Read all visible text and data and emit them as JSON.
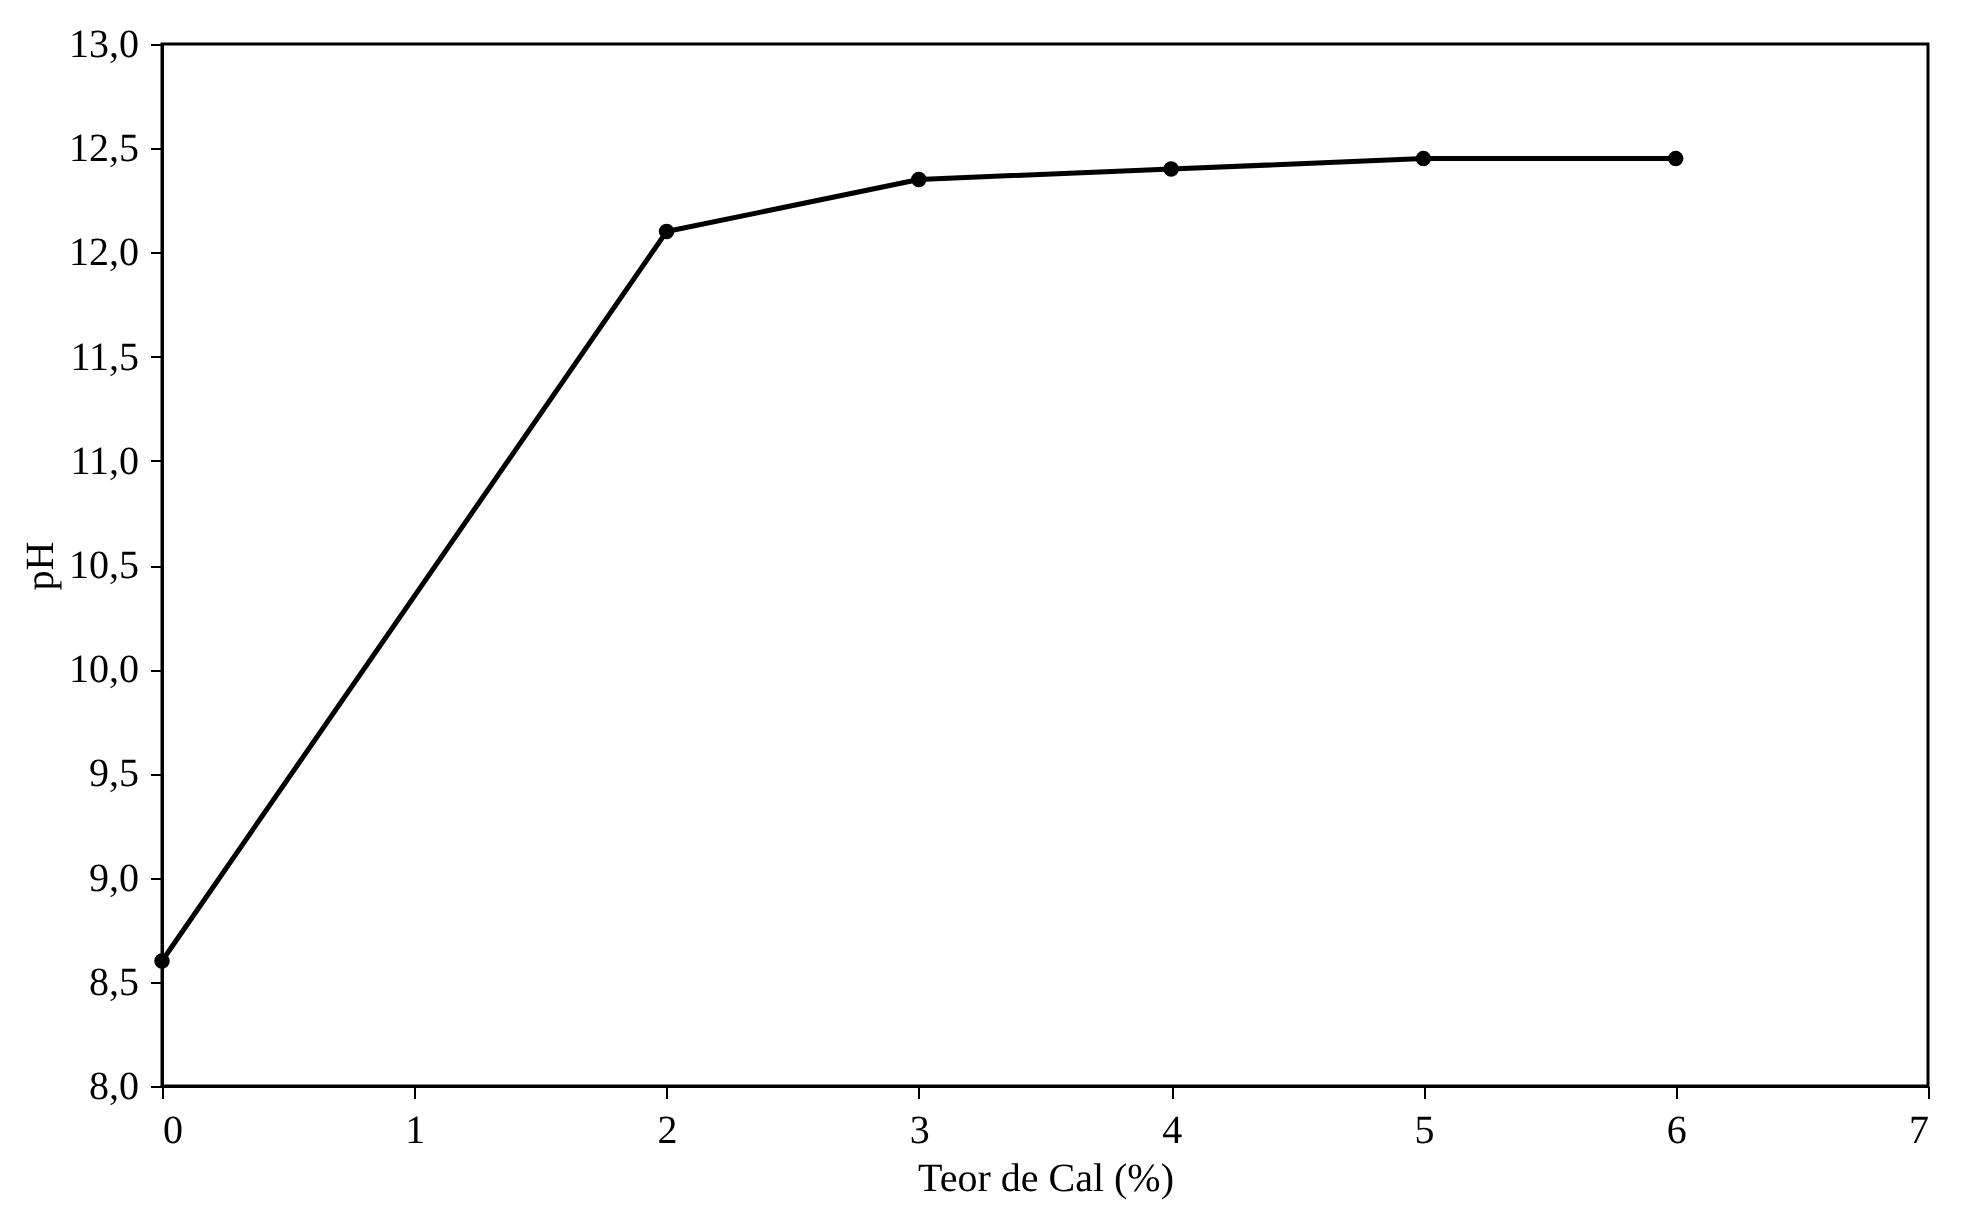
{
  "chart_data": {
    "type": "line",
    "xlabel": "Teor de Cal (%)",
    "ylabel": "pH",
    "x": [
      0,
      2,
      3,
      4,
      5,
      6
    ],
    "series": [
      {
        "color": "#000000",
        "values": [
          8.6,
          12.1,
          12.35,
          12.4,
          12.45,
          12.45
        ]
      }
    ],
    "xlim": [
      0,
      7
    ],
    "xticks": [
      0,
      1,
      2,
      3,
      4,
      5,
      6,
      7
    ],
    "ylim": [
      8,
      13
    ],
    "yticks": [
      {
        "value": 8,
        "label": "8,0"
      },
      {
        "value": 8.5,
        "label": "8,5"
      },
      {
        "value": 9,
        "label": "9,0"
      },
      {
        "value": 9.5,
        "label": "9,5"
      },
      {
        "value": 10,
        "label": "10,0"
      },
      {
        "value": 10.5,
        "label": "10,5"
      },
      {
        "value": 11,
        "label": "11,0"
      },
      {
        "value": 11.5,
        "label": "11,5"
      },
      {
        "value": 12,
        "label": "12,0"
      },
      {
        "value": 12.5,
        "label": "12,5"
      },
      {
        "value": 13,
        "label": "13,0"
      }
    ],
    "grid": false,
    "marker": "circle",
    "line_style": "solid"
  }
}
